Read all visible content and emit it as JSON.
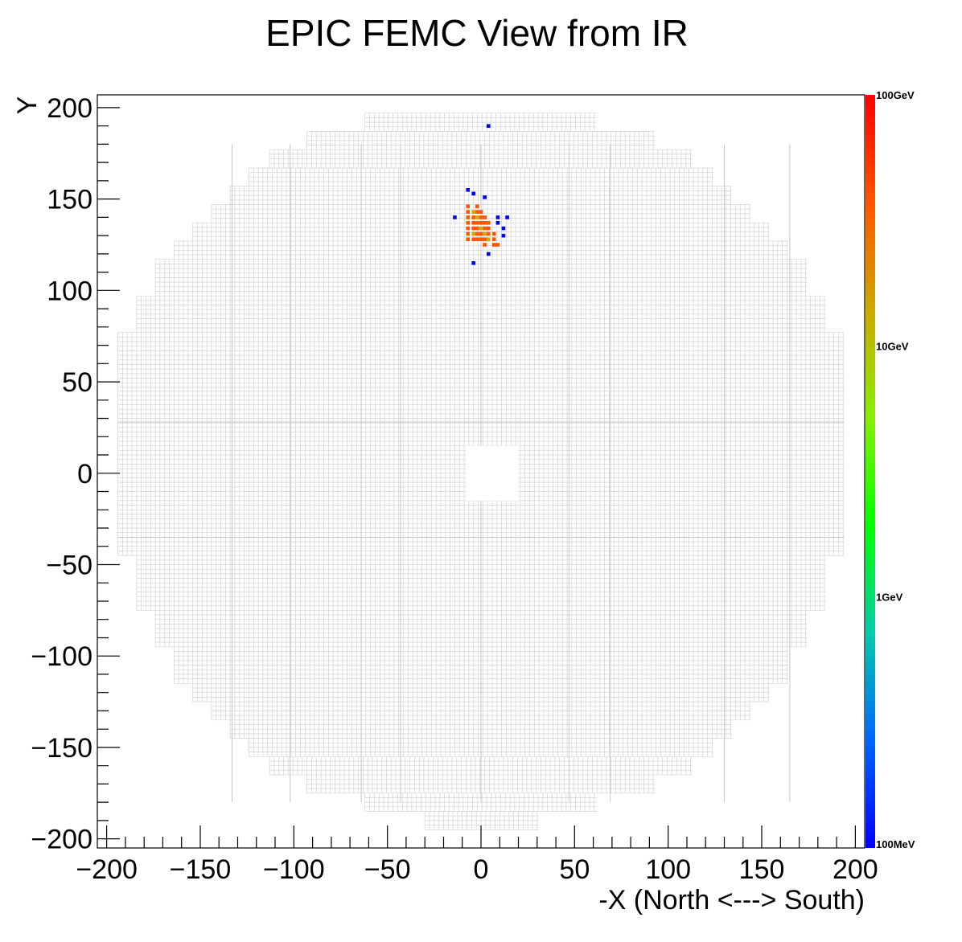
{
  "chart_data": {
    "type": "heatmap",
    "title": "EPIC FEMC View from IR",
    "xlabel": "-X (North <---> South)",
    "ylabel": "Y",
    "xlim": [
      -205,
      205
    ],
    "ylim": [
      -205,
      207
    ],
    "x_ticks": [
      {
        "value": -200,
        "label": "−200"
      },
      {
        "value": -150,
        "label": "−150"
      },
      {
        "value": -100,
        "label": "−100"
      },
      {
        "value": -50,
        "label": "−50"
      },
      {
        "value": 0,
        "label": "0"
      },
      {
        "value": 50,
        "label": "50"
      },
      {
        "value": 100,
        "label": "100"
      },
      {
        "value": 150,
        "label": "150"
      },
      {
        "value": 200,
        "label": "200"
      }
    ],
    "y_ticks": [
      {
        "value": -200,
        "label": "−200"
      },
      {
        "value": -150,
        "label": "−150"
      },
      {
        "value": -100,
        "label": "−100"
      },
      {
        "value": -50,
        "label": "−50"
      },
      {
        "value": 0,
        "label": "0"
      },
      {
        "value": 50,
        "label": "50"
      },
      {
        "value": 100,
        "label": "100"
      },
      {
        "value": 150,
        "label": "150"
      },
      {
        "value": 200,
        "label": "200"
      }
    ],
    "grid": false,
    "color_scale": {
      "scale": "log",
      "min_gev": 0.1,
      "max_gev": 100,
      "labels": [
        {
          "value": 100,
          "label": "100GeV"
        },
        {
          "value": 10,
          "label": "10GeV"
        },
        {
          "value": 1,
          "label": "1GeV"
        },
        {
          "value": 0.1,
          "label": "100MeV"
        }
      ],
      "colors": [
        "#0000ff",
        "#0066ff",
        "#00ccaa",
        "#00ff00",
        "#88ee00",
        "#ccaa00",
        "#ff5500",
        "#ff0000"
      ]
    },
    "detector": {
      "cell_size": 2.5,
      "beam_hole": {
        "x": [
          -8,
          20
        ],
        "y": [
          -15,
          15
        ]
      },
      "envelope_rows": [
        {
          "y": [
            197,
            197
          ],
          "x": [
            -30,
            31
          ]
        },
        {
          "y": [
            187,
            197
          ],
          "x": [
            -62,
            62
          ]
        },
        {
          "y": [
            177,
            187
          ],
          "x": [
            -93,
            93
          ]
        },
        {
          "y": [
            167,
            177
          ],
          "x": [
            -113,
            113
          ]
        },
        {
          "y": [
            157,
            167
          ],
          "x": [
            -124,
            124
          ]
        },
        {
          "y": [
            147,
            157
          ],
          "x": [
            -134,
            134
          ]
        },
        {
          "y": [
            137,
            147
          ],
          "x": [
            -144,
            144
          ]
        },
        {
          "y": [
            127,
            137
          ],
          "x": [
            -154,
            154
          ]
        },
        {
          "y": [
            117,
            127
          ],
          "x": [
            -164,
            164
          ]
        },
        {
          "y": [
            97,
            117
          ],
          "x": [
            -174,
            174
          ]
        },
        {
          "y": [
            77,
            97
          ],
          "x": [
            -184,
            184
          ]
        },
        {
          "y": [
            47,
            77
          ],
          "x": [
            -194,
            194
          ]
        },
        {
          "y": [
            -45,
            47
          ],
          "x": [
            -194,
            194
          ]
        },
        {
          "y": [
            -75,
            -45
          ],
          "x": [
            -184,
            184
          ]
        },
        {
          "y": [
            -95,
            -75
          ],
          "x": [
            -174,
            174
          ]
        },
        {
          "y": [
            -115,
            -95
          ],
          "x": [
            -164,
            164
          ]
        },
        {
          "y": [
            -125,
            -115
          ],
          "x": [
            -154,
            154
          ]
        },
        {
          "y": [
            -135,
            -125
          ],
          "x": [
            -144,
            144
          ]
        },
        {
          "y": [
            -145,
            -135
          ],
          "x": [
            -134,
            134
          ]
        },
        {
          "y": [
            -155,
            -145
          ],
          "x": [
            -124,
            124
          ]
        },
        {
          "y": [
            -165,
            -155
          ],
          "x": [
            -113,
            113
          ]
        },
        {
          "y": [
            -175,
            -165
          ],
          "x": [
            -93,
            93
          ]
        },
        {
          "y": [
            -185,
            -175
          ],
          "x": [
            -62,
            62
          ]
        },
        {
          "y": [
            -195,
            -185
          ],
          "x": [
            -30,
            31
          ]
        }
      ]
    },
    "hits": [
      {
        "x": 4,
        "y": 190,
        "e": 0.15
      },
      {
        "x": -7,
        "y": 155,
        "e": 0.15
      },
      {
        "x": -4,
        "y": 153,
        "e": 0.15
      },
      {
        "x": 2,
        "y": 151,
        "e": 0.15
      },
      {
        "x": -14,
        "y": 140,
        "e": 0.15
      },
      {
        "x": 14,
        "y": 140,
        "e": 0.15
      },
      {
        "x": 9,
        "y": 140,
        "e": 0.15
      },
      {
        "x": 9,
        "y": 137,
        "e": 0.15
      },
      {
        "x": 12,
        "y": 134,
        "e": 0.15
      },
      {
        "x": 12,
        "y": 130,
        "e": 0.15
      },
      {
        "x": 4,
        "y": 120,
        "e": 0.15
      },
      {
        "x": -4,
        "y": 115,
        "e": 0.15
      },
      {
        "x": -7,
        "y": 146,
        "e": 60
      },
      {
        "x": -2,
        "y": 146,
        "e": 60
      },
      {
        "x": -7,
        "y": 143,
        "e": 60
      },
      {
        "x": -4,
        "y": 143,
        "e": 15
      },
      {
        "x": -2,
        "y": 143,
        "e": 60
      },
      {
        "x": 0,
        "y": 143,
        "e": 60
      },
      {
        "x": -7,
        "y": 140,
        "e": 60
      },
      {
        "x": -4,
        "y": 140,
        "e": 60
      },
      {
        "x": -2,
        "y": 140,
        "e": 20
      },
      {
        "x": 0,
        "y": 140,
        "e": 60
      },
      {
        "x": 2,
        "y": 140,
        "e": 60
      },
      {
        "x": -7,
        "y": 137,
        "e": 60
      },
      {
        "x": -4,
        "y": 137,
        "e": 25
      },
      {
        "x": -2,
        "y": 137,
        "e": 30
      },
      {
        "x": 0,
        "y": 137,
        "e": 60
      },
      {
        "x": 2,
        "y": 137,
        "e": 60
      },
      {
        "x": 4,
        "y": 137,
        "e": 60
      },
      {
        "x": -7,
        "y": 134,
        "e": 60
      },
      {
        "x": -4,
        "y": 134,
        "e": 60
      },
      {
        "x": -2,
        "y": 134,
        "e": 30
      },
      {
        "x": 0,
        "y": 134,
        "e": 20
      },
      {
        "x": 2,
        "y": 134,
        "e": 60
      },
      {
        "x": 4,
        "y": 134,
        "e": 60
      },
      {
        "x": -7,
        "y": 131,
        "e": 60
      },
      {
        "x": -4,
        "y": 131,
        "e": 20
      },
      {
        "x": -2,
        "y": 131,
        "e": 60
      },
      {
        "x": 0,
        "y": 131,
        "e": 60
      },
      {
        "x": 2,
        "y": 131,
        "e": 20
      },
      {
        "x": 4,
        "y": 131,
        "e": 60
      },
      {
        "x": 7,
        "y": 131,
        "e": 60
      },
      {
        "x": -7,
        "y": 128,
        "e": 60
      },
      {
        "x": -4,
        "y": 128,
        "e": 60
      },
      {
        "x": -2,
        "y": 128,
        "e": 60
      },
      {
        "x": 0,
        "y": 128,
        "e": 60
      },
      {
        "x": 2,
        "y": 128,
        "e": 60
      },
      {
        "x": 4,
        "y": 128,
        "e": 15
      },
      {
        "x": 7,
        "y": 128,
        "e": 60
      },
      {
        "x": 2,
        "y": 125,
        "e": 60
      },
      {
        "x": 7,
        "y": 125,
        "e": 60
      },
      {
        "x": 9,
        "y": 125,
        "e": 60
      }
    ]
  }
}
